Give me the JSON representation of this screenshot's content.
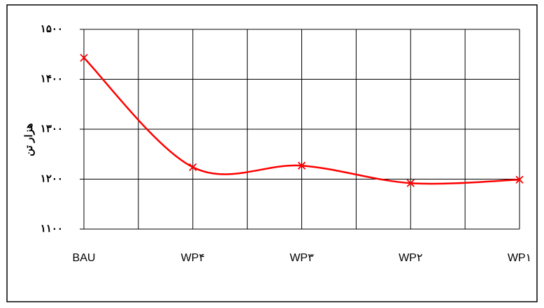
{
  "chart_data": {
    "type": "line",
    "y_label": "هزار تن",
    "categories": [
      "BAU",
      "WP۴",
      "WP۳",
      "WP۲",
      "WP۱"
    ],
    "values": [
      1443,
      1224,
      1227,
      1192,
      1199
    ],
    "color": "#ff0000",
    "ylim": [
      1100,
      1500
    ],
    "yticks": [
      {
        "value": 1100,
        "label": "۱۱۰۰"
      },
      {
        "value": 1200,
        "label": "۱۲۰۰"
      },
      {
        "value": 1300,
        "label": "۱۳۰۰"
      },
      {
        "value": 1400,
        "label": "۱۴۰۰"
      },
      {
        "value": 1500,
        "label": "۱۵۰۰"
      }
    ],
    "grid": true,
    "smooth": true
  }
}
